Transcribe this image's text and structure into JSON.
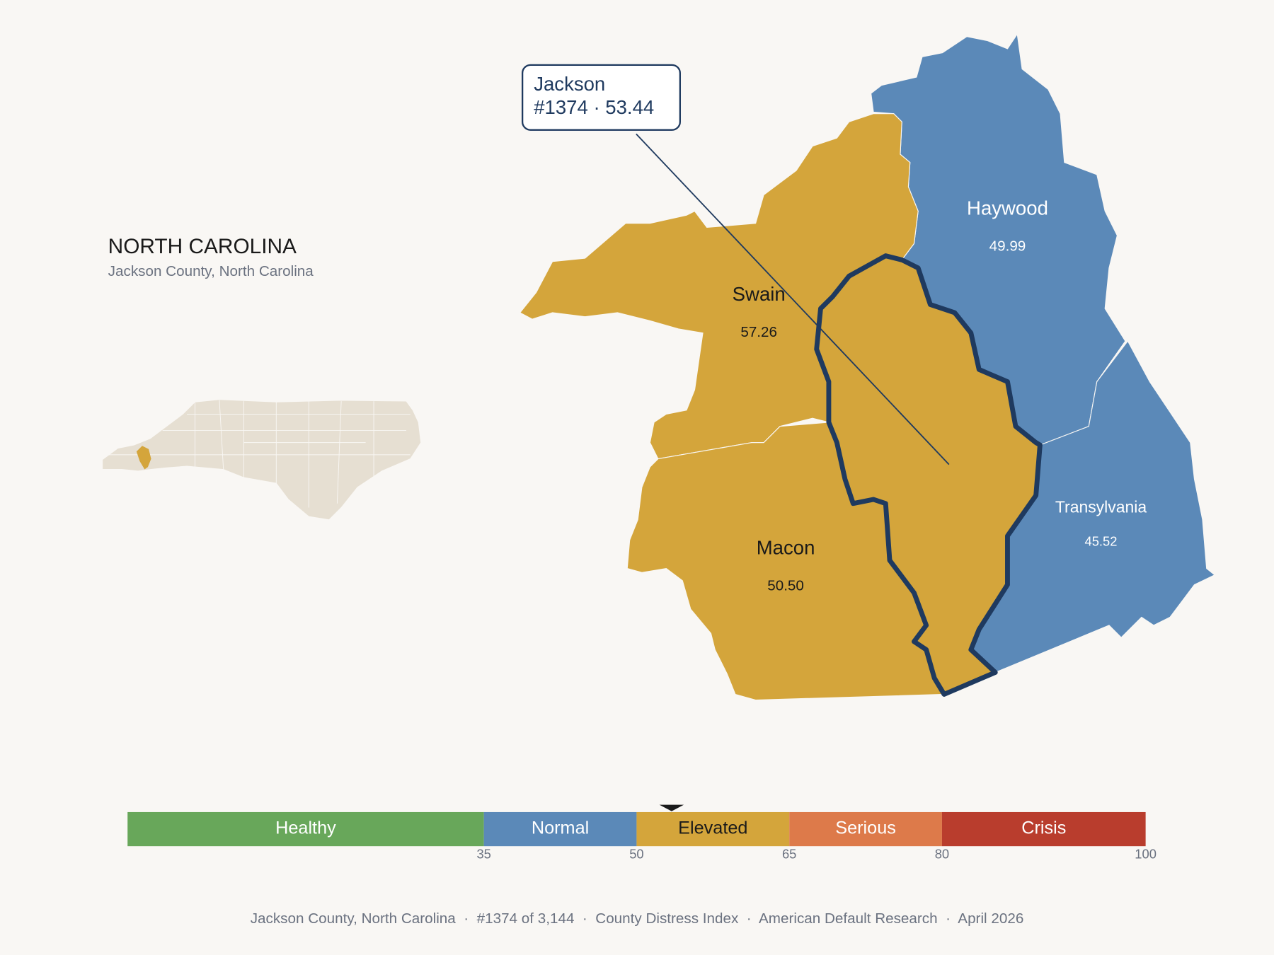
{
  "header": {
    "title": "NORTH CAROLINA",
    "subtitle": "Jackson County, North Carolina"
  },
  "counties": [
    {
      "name": "Haywood",
      "value": "49.99",
      "color": "#5b89b8",
      "label_color": "#ffffff"
    },
    {
      "name": "Transylvania",
      "value": "45.52",
      "color": "#5b89b8",
      "label_color": "#ffffff"
    },
    {
      "name": "Swain",
      "value": "57.26",
      "color": "#d4a53b",
      "label_color": "#1a1a1a"
    },
    {
      "name": "Macon",
      "value": "50.50",
      "color": "#d4a53b",
      "label_color": "#1a1a1a"
    }
  ],
  "callout": {
    "name": "Jackson",
    "detail": "#1374 · 53.44"
  },
  "legend": {
    "xlim": [
      0,
      100
    ],
    "xticks": [
      35,
      50,
      65,
      80,
      100
    ],
    "marker": 53.44,
    "bands": [
      {
        "label": "Healthy",
        "color": "#68a75a",
        "label_color": "#ffffff"
      },
      {
        "label": "Normal",
        "color": "#5b89b8",
        "label_color": "#ffffff"
      },
      {
        "label": "Elevated",
        "color": "#d4a53b",
        "label_color": "#1a1a1a"
      },
      {
        "label": "Serious",
        "color": "#dd7a4a",
        "label_color": "#ffffff"
      },
      {
        "label": "Crisis",
        "color": "#b93d2d",
        "label_color": "#ffffff"
      }
    ]
  },
  "footer": "Jackson County, North Carolina  ·  #1374 of 3,144  ·  County Distress Index  ·  American Default Research  ·  April 2026"
}
